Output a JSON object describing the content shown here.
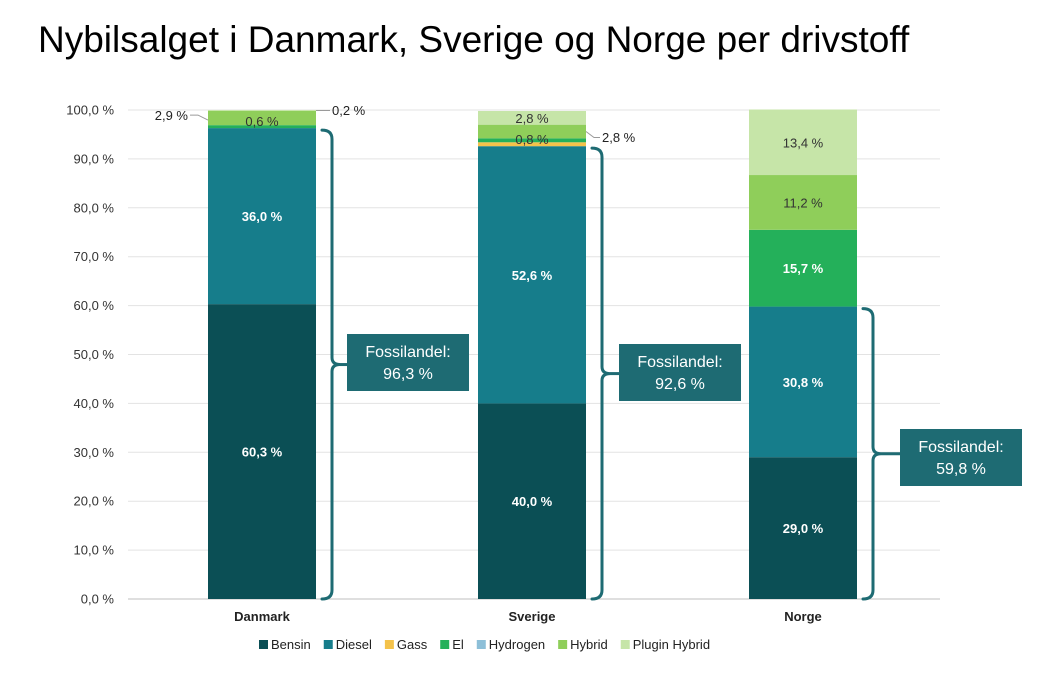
{
  "title": "Nybilsalget i Danmark, Sverige og Norge per drivstoff",
  "chart_data": {
    "type": "bar",
    "stacked": true,
    "categories": [
      "Danmark",
      "Sverige",
      "Norge"
    ],
    "series": [
      {
        "name": "Bensin",
        "color": "#0b4f55",
        "values": [
          60.3,
          40.0,
          29.0
        ]
      },
      {
        "name": "Diesel",
        "color": "#167d8b",
        "values": [
          36.0,
          52.6,
          30.8
        ]
      },
      {
        "name": "Gass",
        "color": "#f4c24a",
        "values": [
          0.0,
          0.8,
          0.0
        ]
      },
      {
        "name": "El",
        "color": "#24b05a",
        "values": [
          0.6,
          0.8,
          15.7
        ]
      },
      {
        "name": "Hydrogen",
        "color": "#8dbfd8",
        "values": [
          0.0,
          0.0,
          0.0
        ]
      },
      {
        "name": "Hybrid",
        "color": "#8fce5a",
        "values": [
          2.9,
          2.8,
          11.2
        ]
      },
      {
        "name": "Plugin Hybrid",
        "color": "#c6e5a8",
        "values": [
          0.2,
          2.8,
          13.4
        ]
      }
    ],
    "data_labels": [
      {
        "category": "Danmark",
        "series": "Bensin",
        "text": "60,3 %",
        "placement": "inside"
      },
      {
        "category": "Danmark",
        "series": "Diesel",
        "text": "36,0 %",
        "placement": "inside"
      },
      {
        "category": "Danmark",
        "series": "El",
        "text": "0,6 %",
        "placement": "inside-dark"
      },
      {
        "category": "Danmark",
        "series": "Hybrid",
        "text": "2,9 %",
        "placement": "left-callout"
      },
      {
        "category": "Danmark",
        "series": "Plugin Hybrid",
        "text": "0,2 %",
        "placement": "right-callout"
      },
      {
        "category": "Sverige",
        "series": "Bensin",
        "text": "40,0 %",
        "placement": "inside"
      },
      {
        "category": "Sverige",
        "series": "Diesel",
        "text": "52,6 %",
        "placement": "inside"
      },
      {
        "category": "Sverige",
        "series": "Gass",
        "text": "0,8 %",
        "placement": "inside-dark"
      },
      {
        "category": "Sverige",
        "series": "Hybrid",
        "text": "2,8 %",
        "placement": "right-callout"
      },
      {
        "category": "Sverige",
        "series": "Plugin Hybrid",
        "text": "2,8 %",
        "placement": "inside-dark"
      },
      {
        "category": "Norge",
        "series": "Bensin",
        "text": "29,0 %",
        "placement": "inside"
      },
      {
        "category": "Norge",
        "series": "Diesel",
        "text": "30,8 %",
        "placement": "inside"
      },
      {
        "category": "Norge",
        "series": "El",
        "text": "15,7 %",
        "placement": "inside"
      },
      {
        "category": "Norge",
        "series": "Hybrid",
        "text": "11,2 %",
        "placement": "inside-dark"
      },
      {
        "category": "Norge",
        "series": "Plugin Hybrid",
        "text": "13,4 %",
        "placement": "inside-dark"
      }
    ],
    "ylim": [
      0,
      100
    ],
    "yticks": [
      0,
      10,
      20,
      30,
      40,
      50,
      60,
      70,
      80,
      90,
      100
    ],
    "ytick_labels": [
      "0,0 %",
      "10,0 %",
      "20,0 %",
      "30,0 %",
      "40,0 %",
      "50,0 %",
      "60,0 %",
      "70,0 %",
      "80,0 %",
      "90,0 %",
      "100,0 %"
    ],
    "grid": true,
    "legend_position": "bottom",
    "annotations": [
      {
        "category": "Danmark",
        "label_line1": "Fossilandel:",
        "label_line2": "96,3 %",
        "value": 96.3
      },
      {
        "category": "Sverige",
        "label_line1": "Fossilandel:",
        "label_line2": "92,6 %",
        "value": 92.6
      },
      {
        "category": "Norge",
        "label_line1": "Fossilandel:",
        "label_line2": "59,8 %",
        "value": 59.8
      }
    ],
    "annotation_color": "#1e6b73",
    "xlabel": "",
    "ylabel": ""
  }
}
